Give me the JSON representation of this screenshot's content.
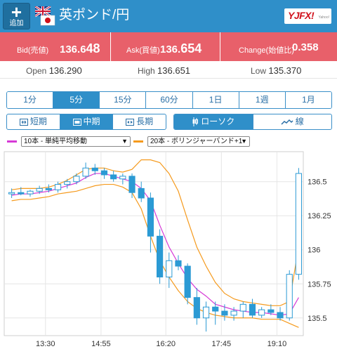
{
  "header": {
    "add_label": "追加",
    "pair_name": "英ポンド/円",
    "logo_text": "YJFX!",
    "logo_sub": "Yahoo!"
  },
  "quotes": {
    "bid_label": "Bid(売値)",
    "bid_main": "136.6",
    "bid_big": "48",
    "ask_label": "Ask(買値)",
    "ask_main": "136.",
    "ask_big": "654",
    "change_label": "Change(始値比)",
    "change_value": "0.358"
  },
  "ranges": {
    "open_label": "Open",
    "open_value": "136.290",
    "high_label": "High",
    "high_value": "136.651",
    "low_label": "Low",
    "low_value": "135.370"
  },
  "timeframes": [
    "1分",
    "5分",
    "15分",
    "60分",
    "1日",
    "1週",
    "1月"
  ],
  "timeframe_active": "5分",
  "terms": [
    "短期",
    "中期",
    "長期"
  ],
  "term_active": "中期",
  "chart_types": [
    "ローソク",
    "線"
  ],
  "chart_type_active": "ローソク",
  "indicators": [
    {
      "label": "10本 - 単純平均移動",
      "color": "#d63ad6"
    },
    {
      "label": "20本 - ボリンジャーバンド+1",
      "color": "#f59a1d"
    }
  ],
  "colors": {
    "header_bg": "#2f8fc9",
    "quote_bg": "#e8606a",
    "candle": "#2b9ad4",
    "sma": "#d63ad6",
    "bollinger": "#f59a1d"
  },
  "chart_data": {
    "type": "candlestick",
    "x_ticks": [
      "13:30",
      "14:55",
      "16:20",
      "17:45",
      "19:10"
    ],
    "y_ticks": [
      136.5,
      136.25,
      136,
      135.75,
      135.5
    ],
    "ylim": [
      135.37,
      136.72
    ],
    "grid": true,
    "series": [
      {
        "name": "10本 - 単純平均移動",
        "values": [
          136.4,
          136.41,
          136.41,
          136.42,
          136.43,
          136.45,
          136.47,
          136.49,
          136.53,
          136.56,
          136.56,
          136.54,
          136.52,
          136.5,
          136.45,
          136.36,
          136.18,
          136.02,
          135.9,
          135.79,
          135.71,
          135.66,
          135.6,
          135.58,
          135.56,
          135.55,
          135.54,
          135.54,
          135.53,
          135.52,
          135.53,
          135.65
        ]
      },
      {
        "name": "20本 - ボリンジャーバンド+1 upper",
        "values": [
          136.44,
          136.45,
          136.45,
          136.45,
          136.46,
          136.48,
          136.51,
          136.55,
          136.59,
          136.6,
          136.6,
          136.58,
          136.57,
          136.59,
          136.66,
          136.66,
          136.64,
          136.56,
          136.43,
          136.22,
          136.02,
          135.88,
          135.76,
          135.68,
          135.64,
          135.62,
          135.61,
          135.6,
          135.59,
          135.59,
          135.62,
          136.02
        ]
      },
      {
        "name": "20本 - ボリンジャーバンド+1 lower",
        "values": [
          136.36,
          136.37,
          136.37,
          136.38,
          136.39,
          136.41,
          136.42,
          136.43,
          136.45,
          136.47,
          136.48,
          136.48,
          136.46,
          136.42,
          136.3,
          136.1,
          135.92,
          135.8,
          135.7,
          135.62,
          135.57,
          135.54,
          135.52,
          135.51,
          135.5,
          135.5,
          135.5,
          135.49,
          135.49,
          135.49,
          135.46,
          135.43
        ]
      }
    ],
    "ohlc": [
      [
        136.41,
        136.45,
        136.38,
        136.42
      ],
      [
        136.42,
        136.46,
        136.4,
        136.41
      ],
      [
        136.41,
        136.44,
        136.39,
        136.43
      ],
      [
        136.43,
        136.47,
        136.41,
        136.45
      ],
      [
        136.45,
        136.48,
        136.42,
        136.44
      ],
      [
        136.44,
        136.5,
        136.42,
        136.48
      ],
      [
        136.48,
        136.52,
        136.45,
        136.5
      ],
      [
        136.5,
        136.56,
        136.48,
        136.54
      ],
      [
        136.54,
        136.64,
        136.52,
        136.6
      ],
      [
        136.6,
        136.63,
        136.55,
        136.58
      ],
      [
        136.58,
        136.6,
        136.52,
        136.55
      ],
      [
        136.55,
        136.58,
        136.5,
        136.52
      ],
      [
        136.52,
        136.56,
        136.48,
        136.54
      ],
      [
        136.54,
        136.56,
        136.38,
        136.42
      ],
      [
        136.45,
        136.5,
        136.35,
        136.38
      ],
      [
        136.38,
        136.42,
        135.98,
        136.1
      ],
      [
        136.1,
        136.15,
        135.75,
        135.8
      ],
      [
        135.8,
        135.98,
        135.72,
        135.92
      ],
      [
        135.92,
        135.96,
        135.85,
        135.88
      ],
      [
        135.88,
        135.9,
        135.6,
        135.65
      ],
      [
        135.65,
        135.72,
        135.45,
        135.5
      ],
      [
        135.5,
        135.62,
        135.4,
        135.58
      ],
      [
        135.58,
        135.62,
        135.45,
        135.55
      ],
      [
        135.55,
        135.6,
        135.48,
        135.52
      ],
      [
        135.52,
        135.58,
        135.48,
        135.55
      ],
      [
        135.55,
        135.62,
        135.5,
        135.6
      ],
      [
        135.6,
        135.64,
        135.5,
        135.52
      ],
      [
        135.52,
        135.58,
        135.5,
        135.56
      ],
      [
        135.56,
        135.6,
        135.52,
        135.54
      ],
      [
        135.54,
        135.58,
        135.48,
        135.5
      ],
      [
        135.5,
        135.85,
        135.48,
        135.82
      ],
      [
        135.82,
        136.6,
        135.78,
        136.56
      ]
    ]
  }
}
